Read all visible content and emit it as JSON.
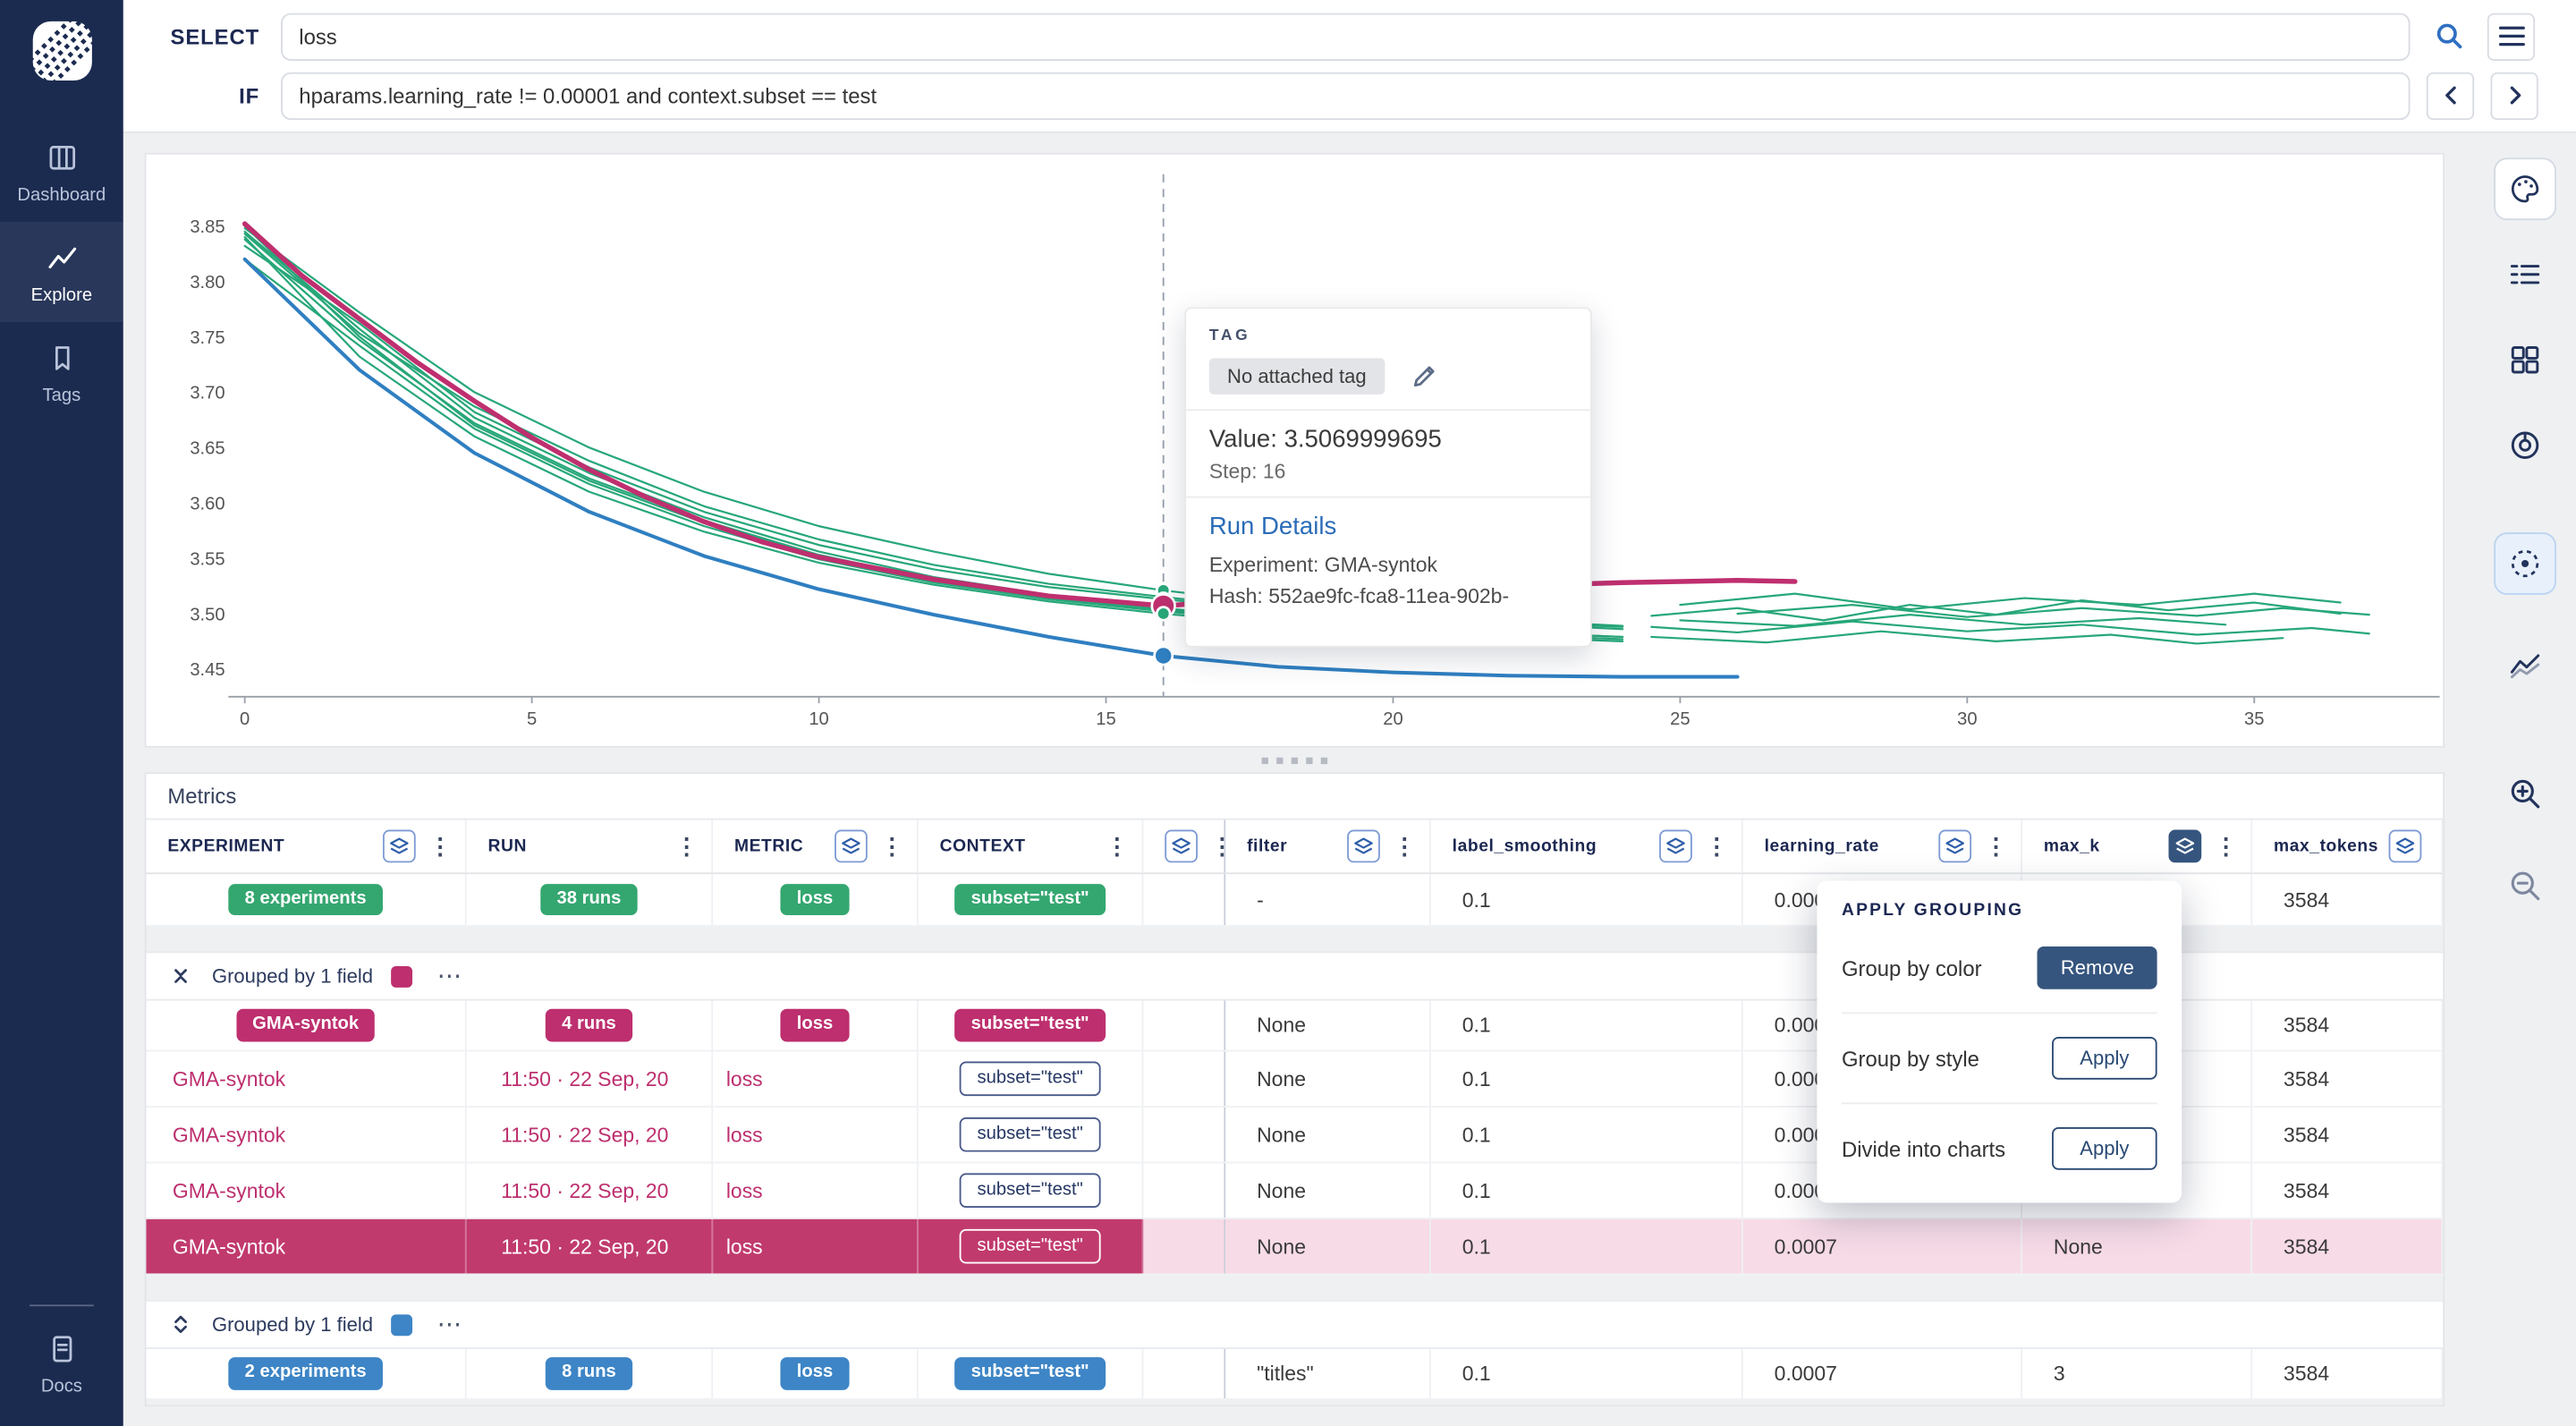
{
  "topbar": {
    "select_label": "SELECT",
    "select_value": "loss",
    "if_label": "IF",
    "if_value": "hparams.learning_rate != 0.00001 and context.subset == test"
  },
  "sidebar": {
    "items": [
      {
        "label": "Dashboard"
      },
      {
        "label": "Explore"
      },
      {
        "label": "Tags"
      }
    ],
    "docs_label": "Docs"
  },
  "chart_tooltip": {
    "tag_label": "TAG",
    "tag_chip": "No attached tag",
    "value_line": "Value: 3.5069999695",
    "step_line": "Step: 16",
    "details_title": "Run Details",
    "experiment_line": "Experiment: GMA-syntok",
    "hash_line": "Hash: 552ae9fc-fca8-11ea-902b-"
  },
  "grouping_popup": {
    "title": "APPLY GROUPING",
    "rows": [
      {
        "label": "Group by color",
        "button": "Remove"
      },
      {
        "label": "Group by style",
        "button": "Apply"
      },
      {
        "label": "Divide into charts",
        "button": "Apply"
      }
    ]
  },
  "metrics": {
    "title": "Metrics",
    "columns": [
      "EXPERIMENT",
      "RUN",
      "METRIC",
      "CONTEXT",
      "",
      "filter",
      "label_smoothing",
      "learning_rate",
      "max_k",
      "max_tokens"
    ],
    "summary": {
      "experiment": "8 experiments",
      "runs": "38 runs",
      "metric": "loss",
      "context": "subset=\"test\"",
      "filter": "-",
      "label_smoothing": "0.1",
      "learning_rate": "0.0007",
      "max_k": "",
      "max_tokens": "3584"
    },
    "group1": {
      "header_label": "Grouped by 1 field",
      "aggregate": {
        "experiment": "GMA-syntok",
        "runs": "4 runs",
        "metric": "loss",
        "context": "subset=\"test\"",
        "filter": "None",
        "label_smoothing": "0.1",
        "learning_rate": "0.0007",
        "max_k": "",
        "max_tokens": "3584"
      },
      "rows": [
        {
          "experiment": "GMA-syntok",
          "run": "11:50 · 22 Sep, 20",
          "metric": "loss",
          "context": "subset=\"test\"",
          "filter": "None",
          "label_smoothing": "0.1",
          "learning_rate": "0.0007",
          "max_k": "",
          "max_tokens": "3584"
        },
        {
          "experiment": "GMA-syntok",
          "run": "11:50 · 22 Sep, 20",
          "metric": "loss",
          "context": "subset=\"test\"",
          "filter": "None",
          "label_smoothing": "0.1",
          "learning_rate": "0.0007",
          "max_k": "",
          "max_tokens": "3584"
        },
        {
          "experiment": "GMA-syntok",
          "run": "11:50 · 22 Sep, 20",
          "metric": "loss",
          "context": "subset=\"test\"",
          "filter": "None",
          "label_smoothing": "0.1",
          "learning_rate": "0.0007",
          "max_k": "",
          "max_tokens": "3584"
        },
        {
          "experiment": "GMA-syntok",
          "run": "11:50 · 22 Sep, 20",
          "metric": "loss",
          "context": "subset=\"test\"",
          "filter": "None",
          "label_smoothing": "0.1",
          "learning_rate": "0.0007",
          "max_k": "None",
          "max_tokens": "3584"
        }
      ]
    },
    "group2": {
      "header_label": "Grouped by 1 field",
      "aggregate": {
        "experiment": "2 experiments",
        "runs": "8 runs",
        "metric": "loss",
        "context": "subset=\"test\"",
        "filter": "\"titles\"",
        "label_smoothing": "0.1",
        "learning_rate": "0.0007",
        "max_k": "3",
        "max_tokens": "3584"
      }
    }
  },
  "icons": {
    "kebab": "⋮",
    "kebab_h": "⋯"
  },
  "colors": {
    "sidebar_navy": "#1b2b50",
    "accent_navy": "#1c2852",
    "green": "#34a770",
    "magenta": "#bd2f6e",
    "blue": "#3d85c6",
    "selected_row_bg": "#c13a6d",
    "selected_tint": "#f7dbe7",
    "link_blue": "#2b6cb8",
    "button_navy": "#35557e"
  },
  "chart_data": {
    "type": "line",
    "xlabel": "",
    "ylabel": "",
    "xlim": [
      0,
      38
    ],
    "ylim": [
      3.425,
      3.885
    ],
    "x_ticks": [
      0,
      5,
      10,
      15,
      20,
      25,
      30,
      35
    ],
    "y_ticks": [
      3.45,
      3.5,
      3.55,
      3.6,
      3.65,
      3.7,
      3.75,
      3.8,
      3.85
    ],
    "cursor_step": 16,
    "series": [
      {
        "color": "#27a779",
        "width": 1.2,
        "points": [
          [
            0,
            3.85
          ],
          [
            2,
            3.75
          ],
          [
            4,
            3.67
          ],
          [
            6,
            3.62
          ],
          [
            8,
            3.582
          ],
          [
            10,
            3.552
          ],
          [
            12,
            3.53
          ],
          [
            14,
            3.514
          ],
          [
            16,
            3.503
          ],
          [
            18,
            3.494
          ],
          [
            20,
            3.488
          ],
          [
            22,
            3.483
          ],
          [
            24,
            3.479
          ]
        ]
      },
      {
        "color": "#27a779",
        "width": 1.2,
        "points": [
          [
            0,
            3.832
          ],
          [
            2,
            3.762
          ],
          [
            4,
            3.682
          ],
          [
            6,
            3.632
          ],
          [
            8,
            3.592
          ],
          [
            10,
            3.562
          ],
          [
            12,
            3.54
          ],
          [
            14,
            3.524
          ],
          [
            16,
            3.513
          ],
          [
            18,
            3.503
          ],
          [
            20,
            3.497
          ],
          [
            22,
            3.492
          ],
          [
            24,
            3.488
          ]
        ]
      },
      {
        "color": "#27a779",
        "width": 1.2,
        "points": [
          [
            0,
            3.84
          ],
          [
            2,
            3.732
          ],
          [
            4,
            3.66
          ],
          [
            6,
            3.61
          ],
          [
            8,
            3.574
          ],
          [
            10,
            3.546
          ],
          [
            12,
            3.526
          ],
          [
            14,
            3.511
          ],
          [
            16,
            3.5
          ],
          [
            18,
            3.491
          ],
          [
            20,
            3.484
          ],
          [
            22,
            3.479
          ],
          [
            24,
            3.475
          ]
        ]
      },
      {
        "color": "#27a779",
        "width": 1.2,
        "points": [
          [
            0,
            3.848
          ],
          [
            2,
            3.772
          ],
          [
            4,
            3.7
          ],
          [
            6,
            3.65
          ],
          [
            8,
            3.61
          ],
          [
            10,
            3.579
          ],
          [
            12,
            3.556
          ],
          [
            14,
            3.536
          ],
          [
            16,
            3.521
          ],
          [
            18,
            3.509
          ],
          [
            20,
            3.5
          ],
          [
            22,
            3.494
          ],
          [
            24,
            3.489
          ]
        ]
      },
      {
        "color": "#27a779",
        "width": 1.2,
        "points": [
          [
            0,
            3.82
          ],
          [
            2,
            3.742
          ],
          [
            4,
            3.667
          ],
          [
            6,
            3.617
          ],
          [
            8,
            3.579
          ],
          [
            10,
            3.549
          ],
          [
            12,
            3.528
          ],
          [
            14,
            3.513
          ],
          [
            16,
            3.502
          ],
          [
            18,
            3.493
          ],
          [
            20,
            3.486
          ],
          [
            22,
            3.481
          ],
          [
            24,
            3.477
          ]
        ]
      },
      {
        "color": "#27a779",
        "width": 1.2,
        "points": [
          [
            0,
            3.845
          ],
          [
            2,
            3.757
          ],
          [
            4,
            3.677
          ],
          [
            6,
            3.627
          ],
          [
            8,
            3.587
          ],
          [
            10,
            3.556
          ],
          [
            12,
            3.533
          ],
          [
            14,
            3.517
          ],
          [
            16,
            3.505
          ],
          [
            18,
            3.495
          ],
          [
            20,
            3.488
          ],
          [
            22,
            3.483
          ],
          [
            24,
            3.479
          ]
        ]
      },
      {
        "color": "#27a779",
        "width": 1.2,
        "points": [
          [
            0,
            3.838
          ],
          [
            2,
            3.747
          ],
          [
            4,
            3.672
          ],
          [
            6,
            3.622
          ],
          [
            8,
            3.584
          ],
          [
            10,
            3.553
          ],
          [
            12,
            3.531
          ],
          [
            14,
            3.515
          ],
          [
            16,
            3.504
          ],
          [
            18,
            3.494
          ],
          [
            20,
            3.487
          ],
          [
            22,
            3.482
          ]
        ]
      },
      {
        "color": "#27a779",
        "width": 1.2,
        "points": [
          [
            0,
            3.843
          ],
          [
            2,
            3.753
          ],
          [
            4,
            3.687
          ],
          [
            6,
            3.638
          ],
          [
            8,
            3.597
          ],
          [
            10,
            3.567
          ],
          [
            12,
            3.544
          ],
          [
            14,
            3.527
          ],
          [
            16,
            3.515
          ],
          [
            18,
            3.504
          ],
          [
            20,
            3.497
          ],
          [
            22,
            3.491
          ],
          [
            24,
            3.486
          ]
        ]
      },
      {
        "color": "#27a779",
        "width": 1.2,
        "points": [
          [
            24.5,
            3.498
          ],
          [
            26,
            3.505
          ],
          [
            27.5,
            3.494
          ],
          [
            29,
            3.508
          ],
          [
            30.5,
            3.499
          ],
          [
            32,
            3.512
          ],
          [
            33.5,
            3.503
          ],
          [
            35,
            3.51
          ],
          [
            36.5,
            3.5
          ]
        ]
      },
      {
        "color": "#27a779",
        "width": 1.2,
        "points": [
          [
            24.5,
            3.488
          ],
          [
            26,
            3.483
          ],
          [
            28,
            3.493
          ],
          [
            30,
            3.484
          ],
          [
            32,
            3.49
          ],
          [
            34,
            3.481
          ],
          [
            36,
            3.487
          ],
          [
            37,
            3.482
          ]
        ]
      },
      {
        "color": "#27a779",
        "width": 1.2,
        "points": [
          [
            25,
            3.508
          ],
          [
            27,
            3.518
          ],
          [
            29,
            3.504
          ],
          [
            31,
            3.514
          ],
          [
            33,
            3.508
          ],
          [
            35,
            3.518
          ],
          [
            36.5,
            3.51
          ]
        ]
      },
      {
        "color": "#27a779",
        "width": 1.2,
        "points": [
          [
            24.5,
            3.479
          ],
          [
            26.5,
            3.474
          ],
          [
            28.5,
            3.484
          ],
          [
            30.5,
            3.475
          ],
          [
            32.5,
            3.481
          ],
          [
            34,
            3.473
          ],
          [
            35.5,
            3.478
          ]
        ]
      },
      {
        "color": "#27a779",
        "width": 1.2,
        "points": [
          [
            25,
            3.494
          ],
          [
            27,
            3.489
          ],
          [
            29,
            3.499
          ],
          [
            31,
            3.49
          ],
          [
            33,
            3.496
          ],
          [
            34.5,
            3.49
          ]
        ]
      },
      {
        "color": "#27a779",
        "width": 1.2,
        "points": [
          [
            26,
            3.5
          ],
          [
            28,
            3.508
          ],
          [
            30,
            3.497
          ],
          [
            32,
            3.505
          ],
          [
            34,
            3.498
          ],
          [
            35.5,
            3.505
          ],
          [
            37,
            3.499
          ]
        ]
      },
      {
        "color": "#2f7fc1",
        "width": 2.2,
        "points": [
          [
            0,
            3.82
          ],
          [
            2,
            3.72
          ],
          [
            4,
            3.645
          ],
          [
            6,
            3.592
          ],
          [
            8,
            3.552
          ],
          [
            10,
            3.522
          ],
          [
            12,
            3.499
          ],
          [
            14,
            3.479
          ],
          [
            16,
            3.462
          ],
          [
            18,
            3.452
          ],
          [
            20,
            3.447
          ],
          [
            22,
            3.444
          ],
          [
            24,
            3.443
          ],
          [
            26,
            3.443
          ]
        ]
      },
      {
        "color": "#bf2f6f",
        "width": 3,
        "points": [
          [
            0,
            3.852
          ],
          [
            1,
            3.805
          ],
          [
            2,
            3.766
          ],
          [
            3,
            3.727
          ],
          [
            4,
            3.692
          ],
          [
            5,
            3.659
          ],
          [
            6,
            3.63
          ],
          [
            7,
            3.605
          ],
          [
            8,
            3.583
          ],
          [
            9,
            3.565
          ],
          [
            10,
            3.551
          ],
          [
            12,
            3.531
          ],
          [
            14,
            3.516
          ],
          [
            16,
            3.507
          ],
          [
            18,
            3.514
          ],
          [
            20,
            3.52
          ],
          [
            22,
            3.525
          ],
          [
            24,
            3.528
          ],
          [
            26,
            3.53
          ],
          [
            27,
            3.529
          ]
        ]
      }
    ],
    "dots": [
      {
        "x": 16,
        "y": 3.521,
        "r": 4,
        "color": "#27a779"
      },
      {
        "x": 16,
        "y": 3.513,
        "r": 4,
        "color": "#27a779"
      },
      {
        "x": 16,
        "y": 3.507,
        "r": 7,
        "color": "#bf2f6f"
      },
      {
        "x": 16,
        "y": 3.5,
        "r": 4,
        "color": "#27a779"
      },
      {
        "x": 16,
        "y": 3.462,
        "r": 5.5,
        "color": "#2f7fc1"
      }
    ]
  }
}
